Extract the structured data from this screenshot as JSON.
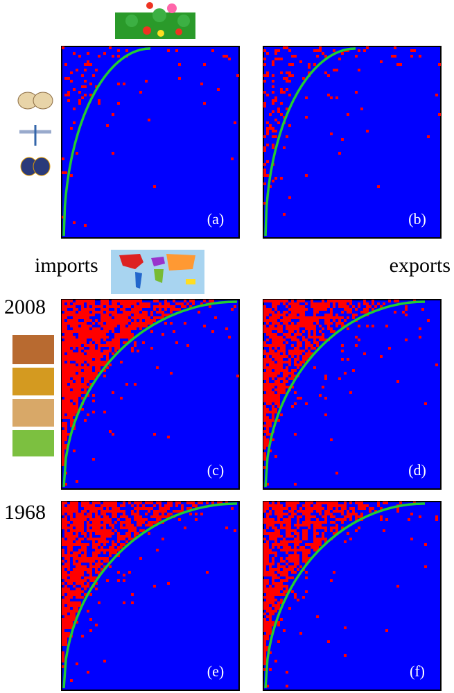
{
  "headings": {
    "left": "imports",
    "right": "exports"
  },
  "years": [
    "2008",
    "1968"
  ],
  "panels": [
    "(a)",
    "(b)",
    "(c)",
    "(d)",
    "(e)",
    "(f)"
  ]
}
